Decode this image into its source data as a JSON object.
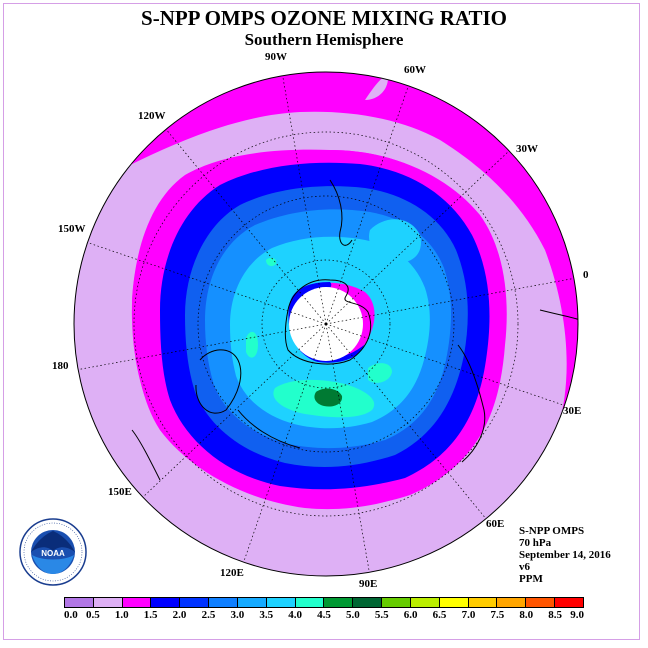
{
  "title": "S-NPP OMPS OZONE MIXING RATIO",
  "subtitle": "Southern Hemisphere",
  "longitude_labels": [
    {
      "text": "90W"
    },
    {
      "text": "60W"
    },
    {
      "text": "30W"
    },
    {
      "text": "120W"
    },
    {
      "text": "150W"
    },
    {
      "text": "0"
    },
    {
      "text": "180"
    },
    {
      "text": "30E"
    },
    {
      "text": "150E"
    },
    {
      "text": "60E"
    },
    {
      "text": "120E"
    },
    {
      "text": "90E"
    }
  ],
  "info": {
    "instrument": "S-NPP OMPS",
    "level": "70 hPa",
    "date": "September 14, 2016",
    "version": "v6",
    "units": "PPM"
  },
  "logo": {
    "text": "NOAA",
    "icon": "noaa-logo-icon"
  },
  "colorbar": {
    "ticks": [
      "0.0",
      "0.5",
      "1.0",
      "1.5",
      "2.0",
      "2.5",
      "3.0",
      "3.5",
      "4.0",
      "4.5",
      "5.0",
      "5.5",
      "6.0",
      "6.5",
      "7.0",
      "7.5",
      "8.0",
      "8.5",
      "9.0"
    ],
    "colors": [
      "#b277e6",
      "#deb0f5",
      "#ff00ff",
      "#0000ff",
      "#0033ff",
      "#0f7fff",
      "#15aaff",
      "#1ed2ff",
      "#22ffcc",
      "#009933",
      "#006633",
      "#66cc00",
      "#bbee00",
      "#ffff00",
      "#ffcc00",
      "#ffa500",
      "#ff5500",
      "#ff0000",
      "#8b4513"
    ]
  }
}
